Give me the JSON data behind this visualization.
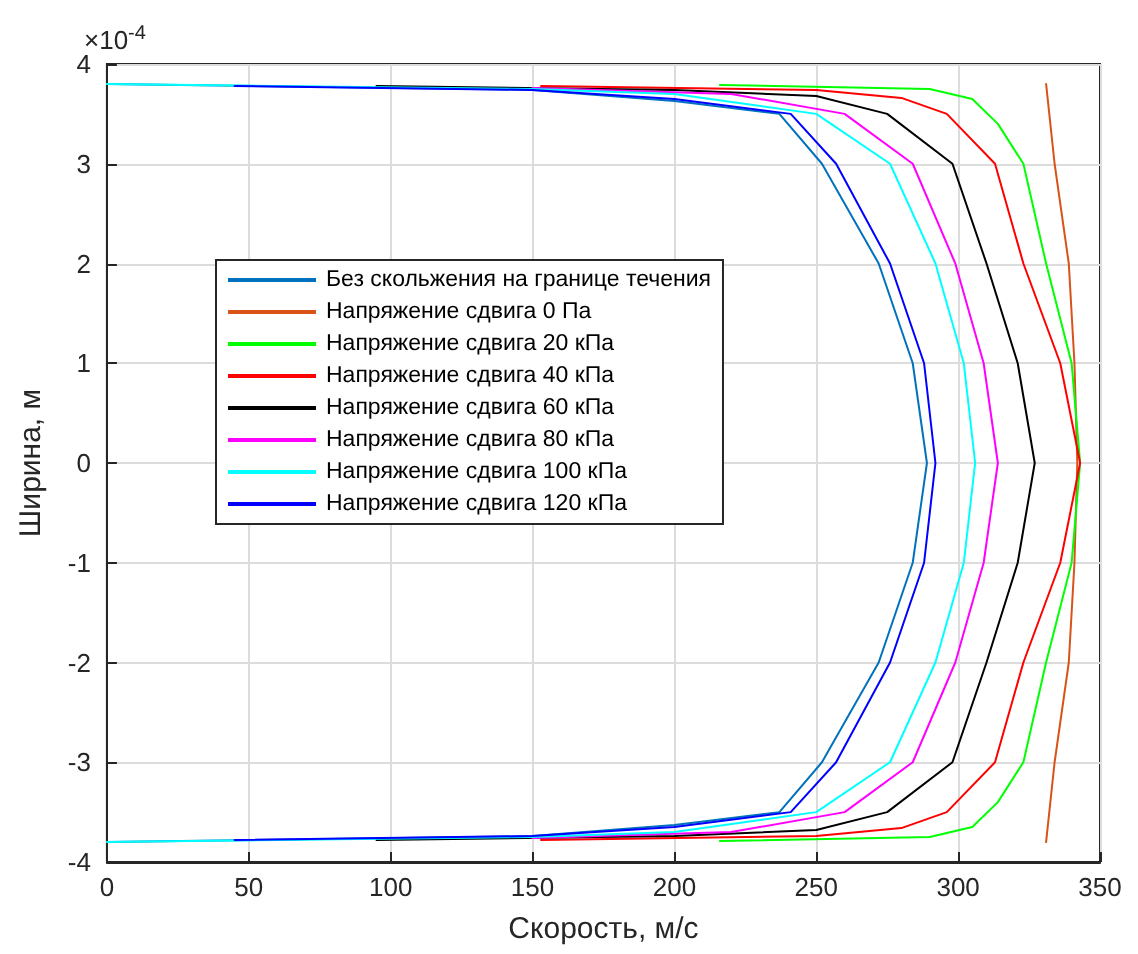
{
  "chart_data": {
    "type": "line",
    "xlabel": "Скорость, м/с",
    "ylabel": "Ширина, м",
    "annotations": [
      "×10$^{-4}$"
    ],
    "xlim": [
      0,
      350
    ],
    "xticks": [
      0,
      50,
      100,
      150,
      200,
      250,
      300,
      350
    ],
    "ylim": [
      -4,
      4
    ],
    "yticks": [
      -4,
      -3,
      -2,
      -1,
      0,
      1,
      2,
      3,
      4
    ],
    "grid": true,
    "legend": "left",
    "marker": "none",
    "line_style": "solid",
    "series": [
      {
        "name": "Без скольжения на границе течения",
        "color": "#0072bd",
        "x": [
          0,
          150,
          200,
          237,
          252,
          272,
          284,
          289,
          284,
          272,
          252,
          237,
          200,
          150,
          0
        ],
        "values": [
          3.8,
          3.74,
          3.63,
          3.5,
          3,
          2,
          1,
          0,
          -1,
          -2,
          -3,
          -3.5,
          -3.63,
          -3.74,
          -3.8
        ]
      },
      {
        "name": "Напряжение сдвига 0 Па",
        "color": "#d95319",
        "x": [
          331,
          334,
          339,
          341,
          342,
          341,
          339,
          334,
          331
        ],
        "values": [
          3.8,
          3,
          2,
          1,
          0,
          -1,
          -2,
          -3,
          -3.8
        ]
      },
      {
        "name": "Напряжение сдвига 20 кПа",
        "color": "#00ff00",
        "x": [
          216,
          290,
          305,
          314,
          323,
          331,
          340,
          343,
          340,
          331,
          323,
          314,
          305,
          290,
          216
        ],
        "values": [
          3.79,
          3.75,
          3.65,
          3.4,
          3,
          2,
          1,
          0,
          -1,
          -2,
          -3,
          -3.4,
          -3.65,
          -3.75,
          -3.79
        ]
      },
      {
        "name": "Напряжение сдвига 40 кПа",
        "color": "#ff0000",
        "x": [
          153,
          250,
          280,
          296,
          313,
          323,
          336,
          343,
          336,
          323,
          313,
          296,
          280,
          250,
          153
        ],
        "values": [
          3.78,
          3.74,
          3.66,
          3.5,
          3,
          2,
          1,
          0,
          -1,
          -2,
          -3,
          -3.5,
          -3.66,
          -3.74,
          -3.78
        ]
      },
      {
        "name": "Напряжение сдвига 60 кПа",
        "color": "#000000",
        "x": [
          95,
          200,
          250,
          275,
          298,
          310,
          321,
          327,
          321,
          310,
          298,
          275,
          250,
          200,
          95
        ],
        "values": [
          3.78,
          3.74,
          3.68,
          3.5,
          3,
          2,
          1,
          0,
          -1,
          -2,
          -3,
          -3.5,
          -3.68,
          -3.74,
          -3.78
        ]
      },
      {
        "name": "Напряжение сдвига 80 кПа",
        "color": "#ff00ff",
        "x": [
          150,
          220,
          260,
          284,
          299,
          309,
          314,
          309,
          299,
          284,
          260,
          220,
          150
        ],
        "values": [
          3.76,
          3.7,
          3.5,
          3,
          2,
          1,
          0,
          -1,
          -2,
          -3,
          -3.5,
          -3.7,
          -3.76
        ]
      },
      {
        "name": "Напряжение сдвига 100 кПа",
        "color": "#00ffff",
        "x": [
          0,
          150,
          200,
          250,
          276,
          292,
          302,
          306,
          302,
          292,
          276,
          250,
          200,
          150,
          0
        ],
        "values": [
          3.8,
          3.75,
          3.7,
          3.5,
          3,
          2,
          1,
          0,
          -1,
          -2,
          -3,
          -3.5,
          -3.7,
          -3.75,
          -3.8
        ]
      },
      {
        "name": "Напряжение сдвига 120 кПа",
        "color": "#0000ff",
        "x": [
          45,
          150,
          200,
          241,
          257,
          276,
          288,
          292,
          288,
          276,
          257,
          241,
          200,
          150,
          45
        ],
        "values": [
          3.78,
          3.74,
          3.65,
          3.5,
          3,
          2,
          1,
          0,
          -1,
          -2,
          -3,
          -3.5,
          -3.65,
          -3.74,
          -3.78
        ]
      }
    ]
  }
}
